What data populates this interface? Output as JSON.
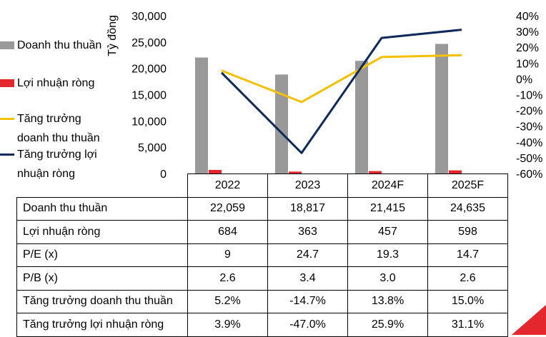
{
  "chart_data": {
    "type": "bar",
    "categories": [
      "2022",
      "2023",
      "2024F",
      "2025F"
    ],
    "y_left_label": "Tỷ đồng",
    "y_left_ticks": [
      "30,000",
      "25,000",
      "20,000",
      "15,000",
      "10,000",
      "5,000",
      "0"
    ],
    "y_left_lim": [
      0,
      30000
    ],
    "y_right_ticks": [
      "40%",
      "30%",
      "20%",
      "10%",
      "0%",
      "-10%",
      "-20%",
      "-30%",
      "-40%",
      "-50%",
      "-60%"
    ],
    "y_right_lim": [
      -60,
      40
    ],
    "series": [
      {
        "name": "Doanh thu thuần",
        "kind": "bar",
        "axis": "left",
        "color": "#999999",
        "values": [
          22059,
          18817,
          21415,
          24635
        ]
      },
      {
        "name": "Lợi nhuận ròng",
        "kind": "bar",
        "axis": "left",
        "color": "#e4262f",
        "values": [
          684,
          363,
          457,
          598
        ]
      },
      {
        "name": "Tăng trưởng doanh thu thuần",
        "kind": "line",
        "axis": "right",
        "color": "#f5c000",
        "values": [
          5.2,
          -14.7,
          13.8,
          15.0
        ]
      },
      {
        "name": "Tăng trưởng lợi nhuận ròng",
        "kind": "line",
        "axis": "right",
        "color": "#0e2a5a",
        "values": [
          3.9,
          -47.0,
          25.9,
          31.1
        ]
      }
    ],
    "legend_position": "left"
  },
  "legend": [
    {
      "lines": [
        "Doanh thu thuần"
      ]
    },
    {
      "lines": [
        "Lợi nhuận ròng"
      ]
    },
    {
      "lines": [
        "Tăng trưởng",
        "doanh thu thuần"
      ]
    },
    {
      "lines": [
        "Tăng trưởng lợi",
        "nhuận ròng"
      ]
    }
  ],
  "table": {
    "headers": [
      "2022",
      "2023",
      "2024F",
      "2025F"
    ],
    "rows": [
      {
        "label": "Doanh thu thuần",
        "cells": [
          "22,059",
          "18,817",
          "21,415",
          "24,635"
        ]
      },
      {
        "label": "Lợi nhuận ròng",
        "cells": [
          "684",
          "363",
          "457",
          "598"
        ]
      },
      {
        "label": "P/E (x)",
        "cells": [
          "9",
          "24.7",
          "19.3",
          "14.7"
        ]
      },
      {
        "label": "P/B (x)",
        "cells": [
          "2.6",
          "3.4",
          "3.0",
          "2.6"
        ]
      },
      {
        "label": "Tăng trưởng doanh thu thuần",
        "cells": [
          "5.2%",
          "-14.7%",
          "13.8%",
          "15.0%"
        ]
      },
      {
        "label": "Tăng trưởng lợi nhuận ròng",
        "cells": [
          "3.9%",
          "-47.0%",
          "25.9%",
          "31.1%"
        ]
      }
    ]
  }
}
